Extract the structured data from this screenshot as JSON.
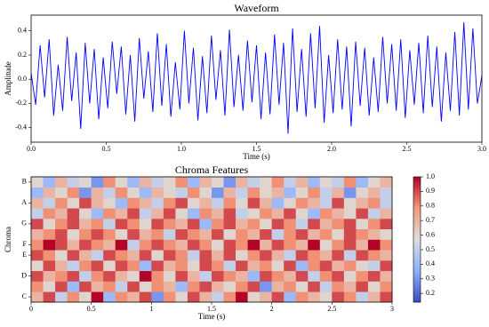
{
  "chart_data": [
    {
      "type": "line",
      "title": "Waveform",
      "xlabel": "Time (s)",
      "ylabel": "Amplitude",
      "x": [
        0,
        0.03,
        0.06,
        0.09,
        0.12,
        0.15,
        0.18,
        0.21,
        0.24,
        0.27,
        0.3,
        0.33,
        0.36,
        0.39,
        0.42,
        0.45,
        0.48,
        0.51,
        0.54,
        0.57,
        0.6,
        0.63,
        0.66,
        0.69,
        0.72,
        0.75,
        0.78,
        0.81,
        0.84,
        0.87,
        0.9,
        0.93,
        0.96,
        0.99,
        1.02,
        1.05,
        1.08,
        1.11,
        1.14,
        1.17,
        1.2,
        1.23,
        1.26,
        1.29,
        1.32,
        1.35,
        1.38,
        1.41,
        1.44,
        1.47,
        1.5,
        1.53,
        1.56,
        1.59,
        1.62,
        1.65,
        1.68,
        1.71,
        1.74,
        1.77,
        1.8,
        1.83,
        1.86,
        1.89,
        1.92,
        1.95,
        1.98,
        2.01,
        2.04,
        2.07,
        2.1,
        2.13,
        2.16,
        2.19,
        2.22,
        2.25,
        2.28,
        2.31,
        2.34,
        2.37,
        2.4,
        2.43,
        2.46,
        2.49,
        2.52,
        2.55,
        2.58,
        2.61,
        2.64,
        2.67,
        2.7,
        2.73,
        2.76,
        2.79,
        2.82,
        2.85,
        2.88,
        2.91,
        2.94,
        2.97,
        3
      ],
      "values": [
        0.05,
        -0.21,
        0.28,
        -0.15,
        0.33,
        -0.3,
        0.12,
        -0.26,
        0.35,
        -0.18,
        0.22,
        -0.41,
        0.3,
        -0.2,
        0.25,
        -0.33,
        0.18,
        -0.24,
        0.31,
        -0.12,
        0.27,
        -0.29,
        0.2,
        -0.35,
        0.34,
        -0.16,
        0.23,
        -0.27,
        0.38,
        -0.22,
        0.29,
        -0.31,
        0.14,
        -0.25,
        0.4,
        -0.2,
        0.26,
        -0.34,
        0.19,
        -0.28,
        0.36,
        -0.17,
        0.24,
        -0.3,
        0.41,
        -0.23,
        0.2,
        -0.26,
        0.32,
        -0.19,
        0.28,
        -0.33,
        0.22,
        -0.29,
        0.37,
        -0.21,
        0.3,
        -0.45,
        0.42,
        -0.27,
        0.25,
        -0.31,
        0.38,
        -0.24,
        0.44,
        -0.36,
        0.2,
        -0.28,
        0.33,
        -0.25,
        0.27,
        -0.39,
        0.31,
        -0.22,
        0.26,
        -0.3,
        0.18,
        -0.27,
        0.35,
        -0.2,
        0.29,
        -0.26,
        0.33,
        -0.32,
        0.24,
        -0.21,
        0.3,
        -0.28,
        0.36,
        -0.23,
        0.27,
        -0.35,
        0.22,
        -0.26,
        0.39,
        -0.3,
        0.47,
        -0.25,
        0.42,
        -0.2,
        0.03
      ],
      "color": "#0000ff",
      "xlim": [
        0,
        3
      ],
      "xticks": [
        {
          "value": 0,
          "label": "0.0"
        },
        0.5,
        {
          "value": 1,
          "label": "1.0"
        },
        1.5,
        {
          "value": 2,
          "label": "2.0"
        },
        2.5,
        {
          "value": 3,
          "label": "3.0"
        }
      ],
      "ylim": [
        -0.52,
        0.53
      ],
      "yticks": [
        -0.4,
        -0.2,
        {
          "value": 0,
          "label": "0.0"
        },
        0.2,
        0.4
      ]
    },
    {
      "type": "heatmap",
      "title": "Chroma Features",
      "xlabel": "Time (s)",
      "ylabel": "Chroma",
      "categories": [
        "C",
        null,
        "D",
        null,
        "E",
        "F",
        null,
        "G",
        null,
        "A",
        null,
        "B"
      ],
      "z": [
        [
          0.7,
          0.9,
          0.5,
          0.8,
          0.6,
          1.0,
          0.4,
          0.8,
          0.7,
          0.9,
          0.3,
          0.8,
          0.6,
          0.9,
          0.7,
          0.5,
          0.8,
          1.0,
          0.6,
          0.7,
          0.9,
          0.4,
          0.8,
          0.7,
          0.6,
          0.9,
          0.8,
          0.5,
          0.7,
          0.9
        ],
        [
          0.8,
          0.6,
          0.9,
          0.4,
          0.9,
          0.7,
          0.8,
          0.5,
          0.9,
          0.6,
          0.8,
          0.7,
          0.4,
          0.8,
          0.9,
          0.7,
          0.6,
          0.8,
          0.9,
          0.3,
          0.7,
          0.8,
          0.6,
          0.9,
          0.5,
          0.8,
          0.7,
          0.9,
          0.6,
          0.8
        ],
        [
          0.9,
          0.7,
          0.8,
          0.9,
          0.5,
          0.8,
          0.9,
          0.7,
          0.6,
          1.0,
          0.8,
          0.6,
          0.9,
          0.7,
          0.5,
          0.9,
          0.8,
          0.7,
          0.4,
          0.9,
          0.8,
          0.7,
          0.9,
          0.5,
          0.8,
          0.9,
          0.6,
          0.8,
          0.9,
          0.7
        ],
        [
          0.6,
          0.9,
          0.7,
          0.5,
          0.8,
          0.9,
          0.6,
          0.9,
          0.8,
          0.4,
          0.9,
          0.7,
          0.8,
          0.6,
          0.9,
          0.8,
          0.5,
          0.9,
          0.7,
          0.8,
          0.6,
          0.9,
          0.4,
          0.8,
          0.9,
          0.7,
          0.8,
          0.6,
          0.5,
          0.9
        ],
        [
          0.9,
          0.8,
          0.6,
          0.9,
          0.7,
          0.5,
          0.9,
          0.8,
          0.7,
          0.9,
          0.6,
          0.9,
          0.8,
          0.5,
          0.9,
          0.7,
          0.9,
          0.6,
          0.8,
          0.9,
          0.7,
          0.5,
          0.9,
          0.8,
          0.7,
          0.9,
          0.5,
          0.9,
          0.8,
          0.7
        ],
        [
          0.8,
          1.0,
          0.9,
          0.7,
          0.9,
          0.8,
          0.7,
          1.0,
          0.5,
          0.8,
          0.9,
          0.8,
          0.7,
          0.9,
          0.8,
          0.6,
          0.9,
          0.8,
          1.0,
          0.7,
          0.9,
          0.8,
          0.7,
          1.0,
          0.6,
          0.8,
          0.9,
          0.7,
          1.0,
          0.8
        ],
        [
          0.7,
          0.8,
          0.9,
          0.6,
          0.8,
          0.9,
          0.8,
          0.6,
          0.9,
          0.7,
          0.8,
          0.5,
          0.9,
          0.8,
          0.7,
          0.9,
          0.6,
          0.8,
          0.7,
          0.9,
          0.5,
          0.8,
          0.9,
          0.7,
          0.8,
          0.6,
          0.9,
          0.8,
          0.7,
          0.6
        ],
        [
          0.9,
          0.6,
          0.8,
          0.9,
          0.7,
          0.8,
          0.5,
          0.9,
          0.8,
          0.6,
          0.9,
          0.8,
          0.7,
          0.9,
          0.4,
          0.8,
          0.9,
          0.7,
          0.8,
          0.6,
          0.9,
          0.8,
          0.5,
          0.9,
          0.7,
          0.8,
          0.9,
          0.6,
          0.8,
          0.9
        ],
        [
          0.5,
          0.8,
          0.7,
          0.9,
          0.6,
          0.4,
          0.8,
          0.7,
          0.9,
          0.5,
          0.7,
          0.9,
          0.6,
          0.4,
          0.8,
          0.7,
          0.9,
          0.5,
          0.6,
          0.8,
          0.7,
          0.9,
          0.6,
          0.4,
          0.8,
          0.7,
          0.6,
          0.9,
          0.5,
          0.7
        ],
        [
          0.7,
          0.5,
          0.8,
          0.6,
          0.9,
          0.7,
          0.6,
          0.4,
          0.8,
          0.7,
          0.5,
          0.8,
          0.9,
          0.6,
          0.7,
          0.5,
          0.8,
          0.6,
          0.9,
          0.7,
          0.4,
          0.6,
          0.8,
          0.7,
          0.5,
          0.9,
          0.6,
          0.7,
          0.8,
          0.5
        ],
        [
          0.4,
          0.7,
          0.6,
          0.8,
          0.3,
          0.7,
          0.5,
          0.8,
          0.6,
          0.4,
          0.7,
          0.6,
          0.5,
          0.8,
          0.6,
          0.3,
          0.7,
          0.5,
          0.8,
          0.6,
          0.7,
          0.4,
          0.6,
          0.8,
          0.5,
          0.7,
          0.3,
          0.6,
          0.7,
          0.5
        ],
        [
          0.6,
          0.4,
          0.7,
          0.5,
          0.6,
          0.3,
          0.8,
          0.6,
          0.4,
          0.7,
          0.5,
          0.6,
          0.8,
          0.4,
          0.7,
          0.6,
          0.3,
          0.7,
          0.5,
          0.6,
          0.8,
          0.5,
          0.7,
          0.4,
          0.6,
          0.5,
          0.8,
          0.4,
          0.6,
          0.7
        ]
      ],
      "colormap": "coolwarm",
      "clim": [
        0.14,
        1.0
      ],
      "cticks": [
        0.2,
        0.3,
        0.4,
        0.5,
        0.6,
        0.7,
        0.8,
        0.9,
        {
          "value": 1,
          "label": "1.0"
        }
      ],
      "xlim": [
        0,
        3
      ],
      "xticks": [
        0,
        0.5,
        1,
        1.5,
        2,
        2.5,
        3
      ]
    }
  ]
}
